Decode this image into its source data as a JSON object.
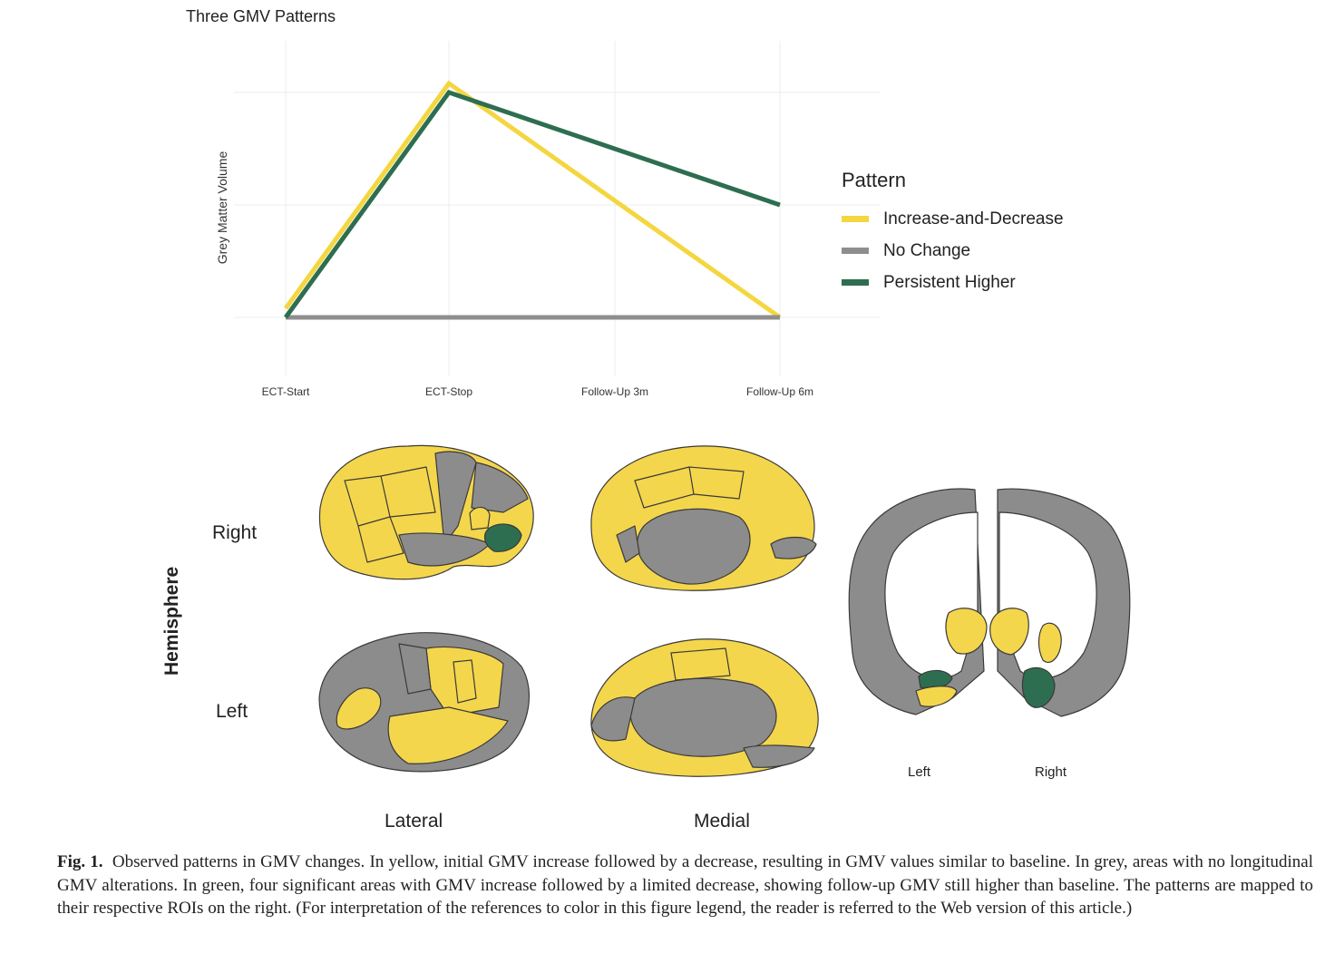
{
  "chart_data": {
    "type": "line",
    "title": "Three GMV Patterns",
    "xlabel": "",
    "ylabel": "Grey Matter Volume",
    "categories": [
      "ECT-Start",
      "ECT-Stop",
      "Follow-Up 3m",
      "Follow-Up 6m"
    ],
    "ylim": [
      0,
      1.04
    ],
    "grid": true,
    "legend": {
      "title": "Pattern",
      "placement": "right"
    },
    "series": [
      {
        "name": "Increase-and-Decrease",
        "color": "#f4d640",
        "points": [
          {
            "x": "ECT-Start",
            "y": 0.04
          },
          {
            "x": "ECT-Stop",
            "y": 1.04
          },
          {
            "x": "Follow-Up 6m",
            "y": 0
          }
        ]
      },
      {
        "name": "No Change",
        "color": "#8e8e8e",
        "points": [
          {
            "x": "ECT-Start",
            "y": 0
          },
          {
            "x": "Follow-Up 6m",
            "y": 0
          }
        ]
      },
      {
        "name": "Persistent Higher",
        "color": "#2e6e50",
        "points": [
          {
            "x": "ECT-Start",
            "y": 0
          },
          {
            "x": "ECT-Stop",
            "y": 1.0
          },
          {
            "x": "Follow-Up 6m",
            "y": 0.5
          }
        ]
      }
    ]
  },
  "brain": {
    "facet_title": "Hemisphere",
    "rows": [
      "Right",
      "Left"
    ],
    "columns": [
      "Lateral",
      "Medial"
    ],
    "coronal_labels": [
      "Left",
      "Right"
    ],
    "colors": {
      "yellow": "#f4d64c",
      "grey": "#8c8c8c",
      "green": "#2e6e50",
      "outline": "#3a3a3a"
    }
  },
  "caption": {
    "label": "Fig. 1.",
    "text": "Observed patterns in GMV changes. In yellow, initial GMV increase followed by a decrease, resulting in GMV values similar to baseline. In grey, areas with no longitudinal GMV alterations. In green, four significant areas with GMV increase followed by a limited decrease, showing follow-up GMV still higher than baseline. The patterns are mapped to their respective ROIs on the right. (For interpretation of the references to color in this figure legend, the reader is referred to the Web version of this article.)"
  }
}
